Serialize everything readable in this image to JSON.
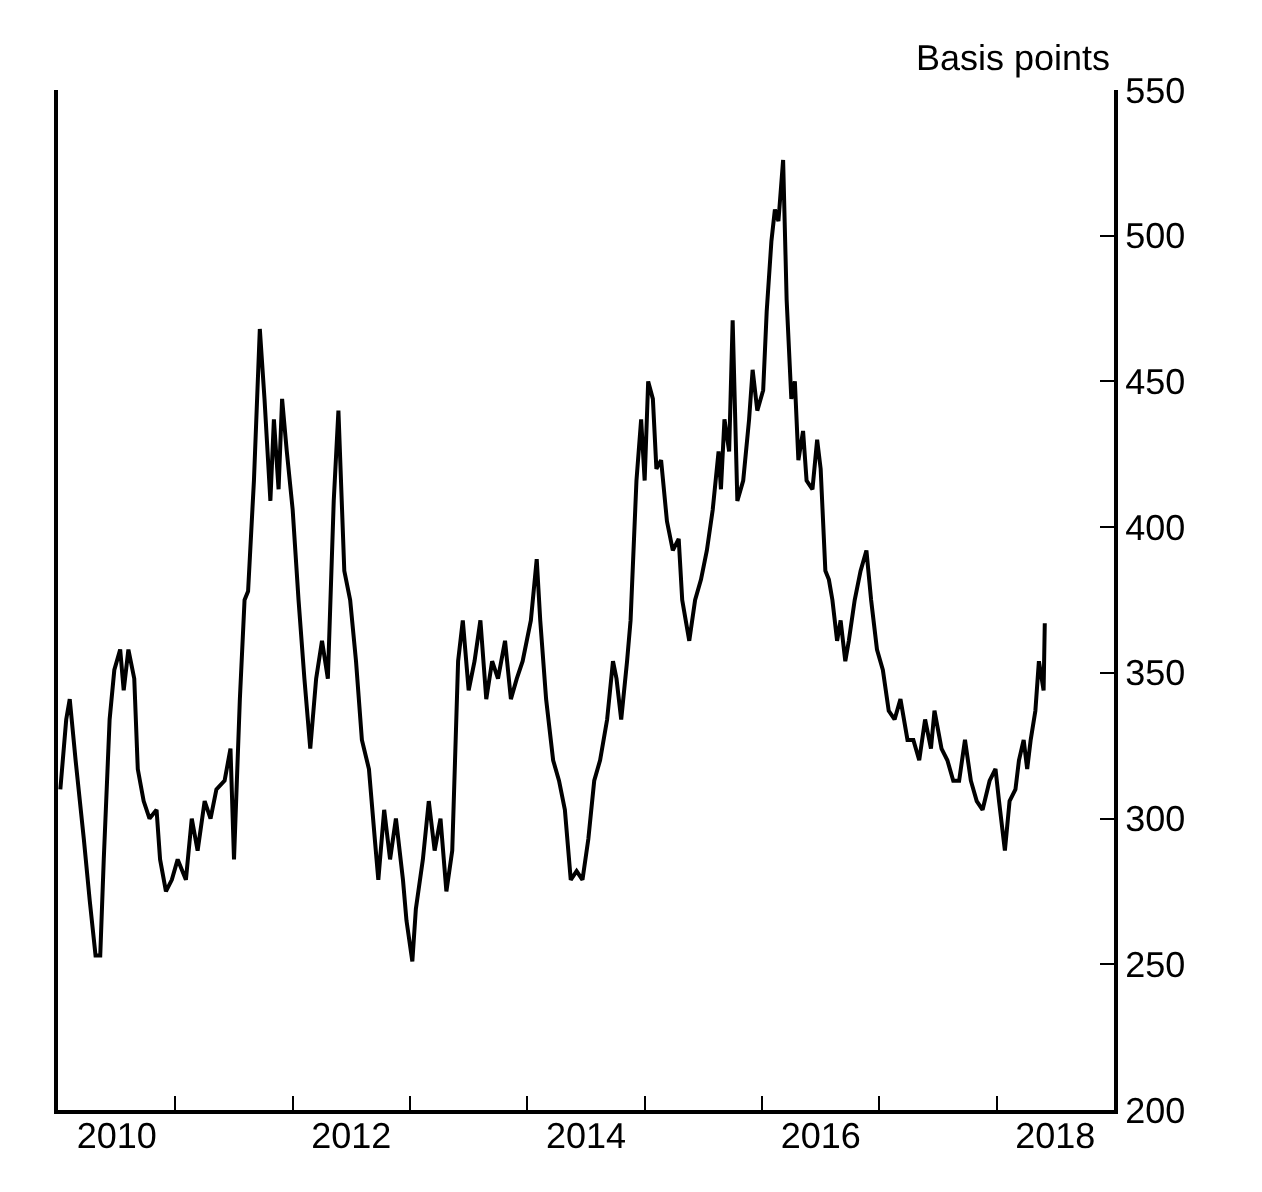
{
  "chart_data": {
    "type": "line",
    "ylabel": "Basis points",
    "x": [
      2010.02,
      2010.07,
      2010.1,
      2010.15,
      2010.22,
      2010.27,
      2010.32,
      2010.36,
      2010.39,
      2010.44,
      2010.48,
      2010.53,
      2010.56,
      2010.6,
      2010.65,
      2010.68,
      2010.73,
      2010.78,
      2010.84,
      2010.87,
      2010.92,
      2010.97,
      2011.02,
      2011.09,
      2011.14,
      2011.19,
      2011.25,
      2011.3,
      2011.35,
      2011.42,
      2011.47,
      2011.5,
      2011.55,
      2011.59,
      2011.62,
      2011.67,
      2011.72,
      2011.76,
      2011.81,
      2011.84,
      2011.88,
      2011.91,
      2011.95,
      2012.0,
      2012.05,
      2012.1,
      2012.15,
      2012.2,
      2012.25,
      2012.3,
      2012.35,
      2012.39,
      2012.44,
      2012.49,
      2012.54,
      2012.59,
      2012.65,
      2012.7,
      2012.73,
      2012.78,
      2012.83,
      2012.88,
      2012.94,
      2012.97,
      2013.02,
      2013.05,
      2013.11,
      2013.16,
      2013.21,
      2013.26,
      2013.31,
      2013.36,
      2013.41,
      2013.45,
      2013.5,
      2013.55,
      2013.6,
      2013.65,
      2013.7,
      2013.75,
      2013.81,
      2013.86,
      2013.91,
      2013.96,
      2014.03,
      2014.08,
      2014.11,
      2014.16,
      2014.22,
      2014.27,
      2014.32,
      2014.37,
      2014.42,
      2014.47,
      2014.52,
      2014.57,
      2014.62,
      2014.68,
      2014.73,
      2014.76,
      2014.8,
      2014.85,
      2014.88,
      2014.93,
      2014.97,
      2015.0,
      2015.03,
      2015.07,
      2015.1,
      2015.14,
      2015.19,
      2015.24,
      2015.29,
      2015.32,
      2015.38,
      2015.43,
      2015.48,
      2015.53,
      2015.58,
      2015.63,
      2015.65,
      2015.68,
      2015.72,
      2015.75,
      2015.79,
      2015.84,
      2015.89,
      2015.92,
      2015.96,
      2016.01,
      2016.04,
      2016.08,
      2016.11,
      2016.14,
      2016.18,
      2016.21,
      2016.25,
      2016.28,
      2016.31,
      2016.35,
      2016.38,
      2016.43,
      2016.47,
      2016.5,
      2016.54,
      2016.57,
      2016.6,
      2016.64,
      2016.67,
      2016.71,
      2016.74,
      2016.79,
      2016.84,
      2016.89,
      2016.93,
      2016.98,
      2017.03,
      2017.08,
      2017.13,
      2017.18,
      2017.24,
      2017.29,
      2017.34,
      2017.39,
      2017.44,
      2017.47,
      2017.53,
      2017.58,
      2017.63,
      2017.68,
      2017.73,
      2017.78,
      2017.83,
      2017.88,
      2017.94,
      2017.99,
      2018.02,
      2018.07,
      2018.11,
      2018.16,
      2018.19,
      2018.23,
      2018.26,
      2018.29,
      2018.33,
      2018.36,
      2018.4,
      2018.41
    ],
    "series": [
      {
        "color": "#000000",
        "values": [
          310,
          334,
          341,
          320,
          293,
          272,
          253,
          253,
          286,
          334,
          351,
          358,
          344,
          358,
          348,
          317,
          306,
          300,
          303,
          286,
          275,
          279,
          286,
          279,
          300,
          289,
          306,
          300,
          310,
          313,
          324,
          286,
          341,
          375,
          378,
          416,
          468,
          444,
          409,
          437,
          413,
          444,
          426,
          406,
          375,
          348,
          324,
          348,
          361,
          348,
          409,
          440,
          385,
          375,
          354,
          327,
          317,
          293,
          279,
          303,
          286,
          300,
          279,
          265,
          251,
          269,
          286,
          306,
          289,
          300,
          275,
          289,
          354,
          368,
          344,
          354,
          368,
          341,
          354,
          348,
          361,
          341,
          348,
          354,
          368,
          389,
          368,
          341,
          320,
          313,
          303,
          279,
          282,
          279,
          293,
          313,
          320,
          334,
          354,
          348,
          334,
          354,
          368,
          416,
          437,
          416,
          450,
          444,
          420,
          423,
          402,
          392,
          396,
          375,
          361,
          375,
          382,
          392,
          406,
          426,
          413,
          437,
          426,
          471,
          409,
          416,
          437,
          454,
          440,
          447,
          474,
          498,
          509,
          505,
          526,
          478,
          444,
          450,
          423,
          433,
          416,
          413,
          430,
          420,
          385,
          382,
          375,
          361,
          368,
          354,
          361,
          375,
          385,
          392,
          375,
          358,
          351,
          337,
          334,
          341,
          327,
          327,
          320,
          334,
          324,
          337,
          324,
          320,
          313,
          313,
          327,
          313,
          306,
          303,
          313,
          317,
          306,
          289,
          306,
          310,
          320,
          327,
          317,
          327,
          337,
          354,
          344,
          367
        ]
      }
    ],
    "xlim": [
      2010.0,
      2019.0
    ],
    "xticks": [
      {
        "value": 2011,
        "label": null
      },
      {
        "value": 2012,
        "label": null
      },
      {
        "value": 2013,
        "label": null
      },
      {
        "value": 2014,
        "label": null
      },
      {
        "value": 2015,
        "label": null
      },
      {
        "value": 2016,
        "label": null
      },
      {
        "value": 2017,
        "label": null
      },
      {
        "value": 2018,
        "label": null
      },
      {
        "value": 2010.5,
        "label": "2010"
      },
      {
        "value": 2012.5,
        "label": "2012"
      },
      {
        "value": 2014.5,
        "label": "2014"
      },
      {
        "value": 2016.5,
        "label": "2016"
      },
      {
        "value": 2018.5,
        "label": "2018"
      }
    ],
    "ylim": [
      200,
      550
    ],
    "yticks": [
      200,
      250,
      300,
      350,
      400,
      450,
      500,
      550
    ],
    "legend": false,
    "line_style": "solid",
    "marker": "none"
  }
}
